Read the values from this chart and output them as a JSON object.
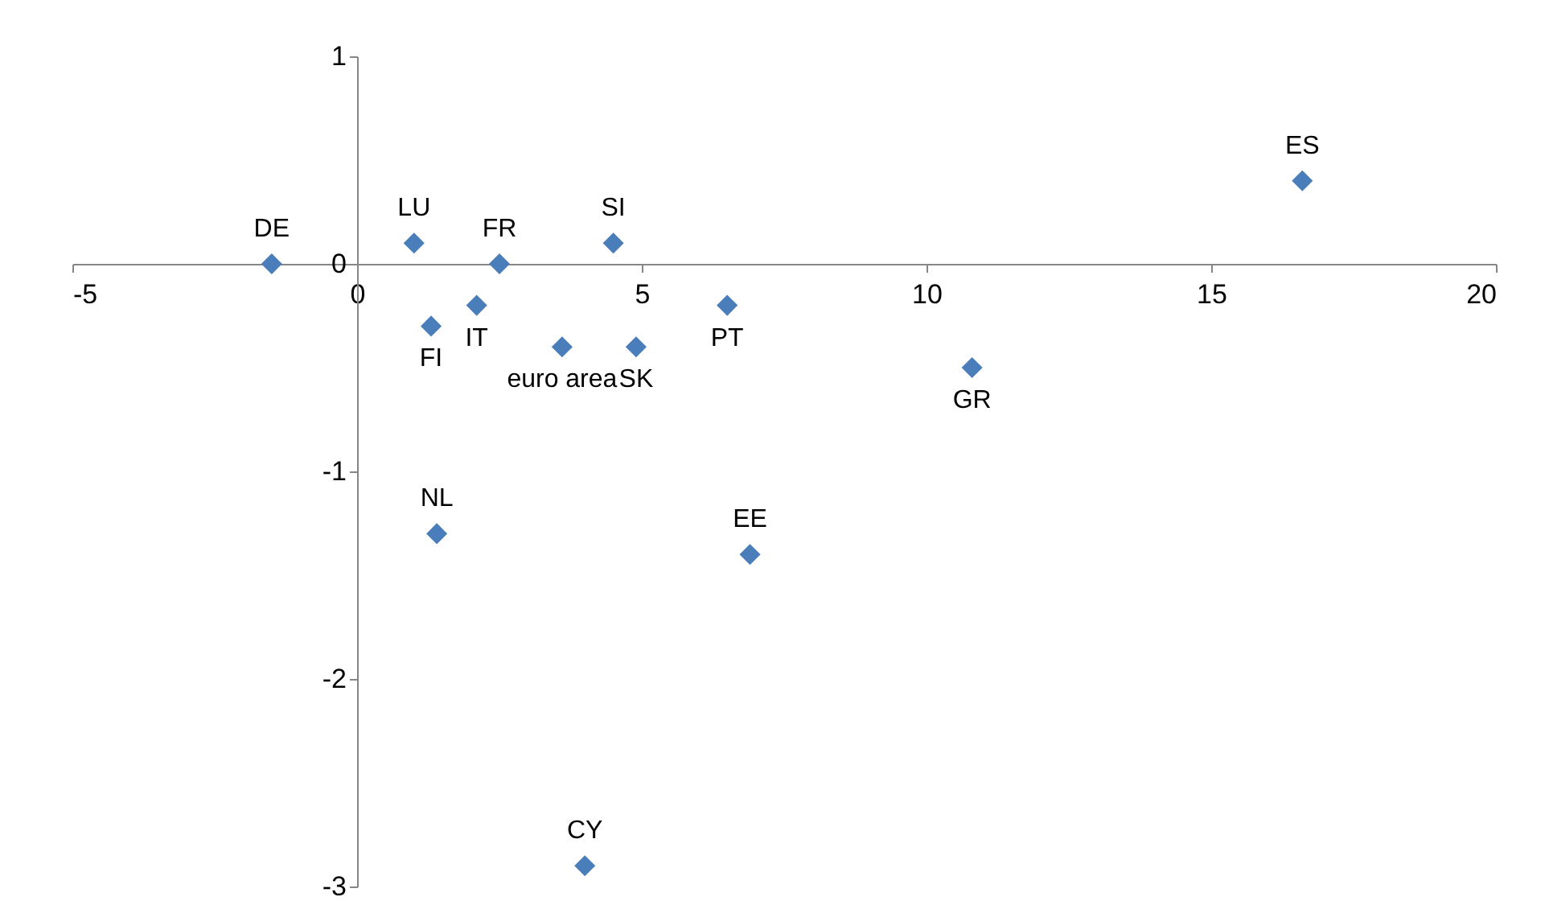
{
  "chart_data": {
    "type": "scatter",
    "marker": "diamond",
    "grid": false,
    "xlim": [
      -5,
      20
    ],
    "xticks": [
      -5,
      0,
      5,
      10,
      15,
      20
    ],
    "ylim": [
      -3,
      1
    ],
    "yticks": [
      -3,
      -2,
      -1,
      0,
      1
    ],
    "series": [
      {
        "color": "#4a7ebb",
        "x": [
          -1.5,
          1.0,
          2.5,
          4.5,
          2.1,
          1.3,
          3.6,
          4.9,
          6.5,
          10.8,
          16.6,
          1.4,
          6.9,
          4.0
        ],
        "values": [
          0,
          0.1,
          0,
          0.1,
          -0.2,
          -0.3,
          -0.4,
          -0.4,
          -0.2,
          -0.5,
          0.4,
          -1.3,
          -1.4,
          -2.9
        ]
      }
    ],
    "annotations": [
      {
        "text": "DE",
        "x": -1.5,
        "y": 0
      },
      {
        "text": "LU",
        "x": 1.0,
        "y": 0.1
      },
      {
        "text": "FR",
        "x": 2.5,
        "y": 0
      },
      {
        "text": "SI",
        "x": 4.5,
        "y": 0.1
      },
      {
        "text": "IT",
        "x": 2.1,
        "y": -0.2
      },
      {
        "text": "FI",
        "x": 1.3,
        "y": -0.3
      },
      {
        "text": "euro area",
        "x": 3.6,
        "y": -0.4
      },
      {
        "text": "SK",
        "x": 4.9,
        "y": -0.4
      },
      {
        "text": "PT",
        "x": 6.5,
        "y": -0.2
      },
      {
        "text": "GR",
        "x": 10.8,
        "y": -0.5
      },
      {
        "text": "ES",
        "x": 16.6,
        "y": 0.4
      },
      {
        "text": "NL",
        "x": 1.4,
        "y": -1.3
      },
      {
        "text": "EE",
        "x": 6.9,
        "y": -1.4
      },
      {
        "text": "CY",
        "x": 4.0,
        "y": -2.9
      }
    ]
  }
}
